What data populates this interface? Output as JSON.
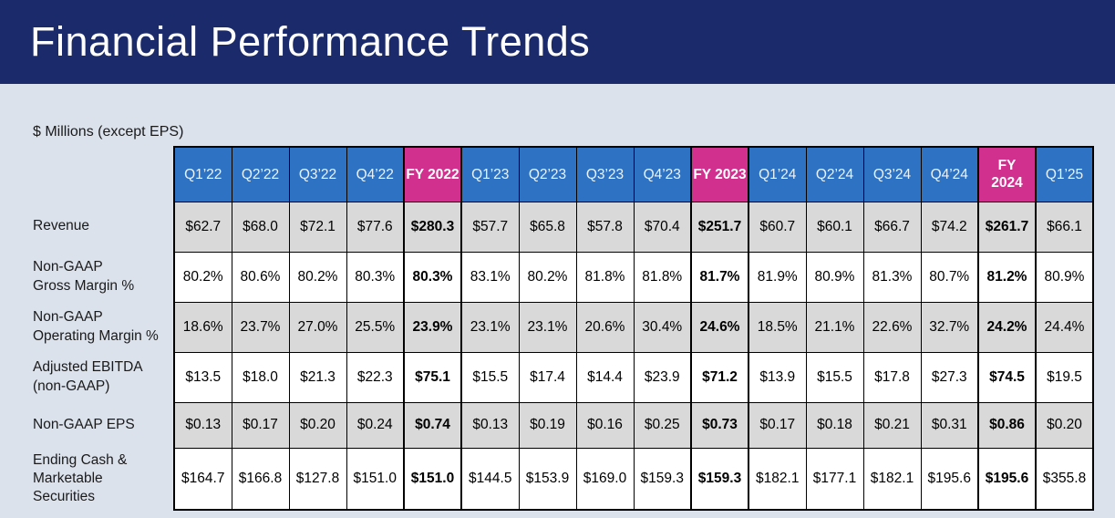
{
  "title": "Financial Performance Trends",
  "units_note": "$ Millions (except EPS)",
  "colors": {
    "banner": "#1B2A6B",
    "header_blue": "#2E73C3",
    "header_pink": "#D2308F",
    "row_gray": "#D9D9D9",
    "row_white": "#FFFFFF",
    "page_bg": "#DBE2EC",
    "border": "#000000"
  },
  "chart_data": {
    "type": "table",
    "title": "Financial Performance Trends",
    "units": "$ Millions (except EPS)",
    "columns": [
      "Q1’22",
      "Q2’22",
      "Q3’22",
      "Q4’22",
      "FY 2022",
      "Q1’23",
      "Q2’23",
      "Q3’23",
      "Q4’23",
      "FY 2023",
      "Q1’24",
      "Q2’24",
      "Q3’24",
      "Q4’24",
      "FY\n2024",
      "Q1’25"
    ],
    "fy_columns": [
      4,
      9,
      14
    ],
    "rows": [
      {
        "label": "Revenue",
        "shade": "gray",
        "values": [
          "$62.7",
          "$68.0",
          "$72.1",
          "$77.6",
          "$280.3",
          "$57.7",
          "$65.8",
          "$57.8",
          "$70.4",
          "$251.7",
          "$60.7",
          "$60.1",
          "$66.7",
          "$74.2",
          "$261.7",
          "$66.1"
        ]
      },
      {
        "label": "Non-GAAP\nGross Margin %",
        "shade": "white",
        "values": [
          "80.2%",
          "80.6%",
          "80.2%",
          "80.3%",
          "80.3%",
          "83.1%",
          "80.2%",
          "81.8%",
          "81.8%",
          "81.7%",
          "81.9%",
          "80.9%",
          "81.3%",
          "80.7%",
          "81.2%",
          "80.9%"
        ]
      },
      {
        "label": "Non-GAAP\nOperating Margin %",
        "shade": "gray",
        "values": [
          "18.6%",
          "23.7%",
          "27.0%",
          "25.5%",
          "23.9%",
          "23.1%",
          "23.1%",
          "20.6%",
          "30.4%",
          "24.6%",
          "18.5%",
          "21.1%",
          "22.6%",
          "32.7%",
          "24.2%",
          "24.4%"
        ]
      },
      {
        "label": "Adjusted EBITDA\n(non-GAAP)",
        "shade": "white",
        "values": [
          "$13.5",
          "$18.0",
          "$21.3",
          "$22.3",
          "$75.1",
          "$15.5",
          "$17.4",
          "$14.4",
          "$23.9",
          "$71.2",
          "$13.9",
          "$15.5",
          "$17.8",
          "$27.3",
          "$74.5",
          "$19.5"
        ]
      },
      {
        "label": "Non-GAAP EPS",
        "shade": "gray",
        "values": [
          "$0.13",
          "$0.17",
          "$0.20",
          "$0.24",
          "$0.74",
          "$0.13",
          "$0.19",
          "$0.16",
          "$0.25",
          "$0.73",
          "$0.17",
          "$0.18",
          "$0.21",
          "$0.31",
          "$0.86",
          "$0.20"
        ]
      },
      {
        "label": "Ending Cash &\nMarketable Securities",
        "shade": "white",
        "values": [
          "$164.7",
          "$166.8",
          "$127.8",
          "$151.0",
          "$151.0",
          "$144.5",
          "$153.9",
          "$169.0",
          "$159.3",
          "$159.3",
          "$182.1",
          "$177.1",
          "$182.1",
          "$195.6",
          "$195.6",
          "$355.8"
        ]
      }
    ]
  }
}
